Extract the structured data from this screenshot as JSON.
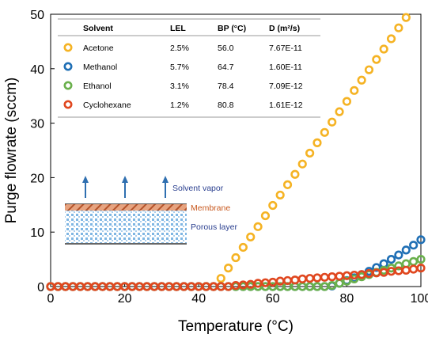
{
  "chart_data": {
    "type": "scatter",
    "xlabel": "Temperature (°C)",
    "ylabel": "Purge flowrate (sccm)",
    "xlim": [
      0,
      100
    ],
    "ylim": [
      0,
      50
    ],
    "xticks": [
      0,
      20,
      40,
      60,
      80,
      100
    ],
    "yticks": [
      0,
      10,
      20,
      30,
      40,
      50
    ],
    "x": [
      0,
      2,
      4,
      6,
      8,
      10,
      12,
      14,
      16,
      18,
      20,
      22,
      24,
      26,
      28,
      30,
      32,
      34,
      36,
      38,
      40,
      42,
      44,
      46,
      48,
      50,
      52,
      54,
      56,
      58,
      60,
      62,
      64,
      66,
      68,
      70,
      72,
      74,
      76,
      78,
      80,
      82,
      84,
      86,
      88,
      90,
      92,
      94,
      96,
      98,
      100
    ],
    "table": {
      "headers": [
        "Solvent",
        "LEL",
        "BP (°C)",
        "D (m²/s)"
      ],
      "rows": [
        [
          "Acetone",
          "2.5%",
          "56.0",
          "7.67E-11"
        ],
        [
          "Methanol",
          "5.7%",
          "64.7",
          "1.60E-11"
        ],
        [
          "Ethanol",
          "3.1%",
          "78.4",
          "7.09E-12"
        ],
        [
          "Cyclohexane",
          "1.2%",
          "80.8",
          "1.61E-12"
        ]
      ]
    },
    "series": [
      {
        "name": "Acetone",
        "color": "#f5b324",
        "values": [
          0,
          0,
          0,
          0,
          0,
          0,
          0,
          0,
          0,
          0,
          0,
          0,
          0,
          0,
          0,
          0,
          0,
          0,
          0,
          0,
          0,
          0,
          0,
          1.5,
          3.4,
          5.3,
          7.2,
          9.1,
          11.0,
          13.0,
          14.9,
          16.8,
          18.7,
          20.6,
          22.5,
          24.5,
          26.4,
          28.3,
          30.2,
          32.1,
          34.0,
          36.0,
          37.9,
          39.8,
          41.7,
          43.6,
          45.5,
          47.5,
          49.4,
          51.3,
          53.2
        ]
      },
      {
        "name": "Methanol",
        "color": "#1f6fb5",
        "values": [
          0,
          0,
          0,
          0,
          0,
          0,
          0,
          0,
          0,
          0,
          0,
          0,
          0,
          0,
          0,
          0,
          0,
          0,
          0,
          0,
          0,
          0,
          0,
          0,
          0,
          0,
          0,
          0,
          0,
          0,
          0,
          0,
          0,
          0,
          0,
          0,
          0,
          0,
          0.1,
          0.6,
          1.1,
          1.6,
          2.2,
          2.8,
          3.5,
          4.2,
          5.0,
          5.8,
          6.7,
          7.6,
          8.6
        ]
      },
      {
        "name": "Ethanol",
        "color": "#6ab04c",
        "values": [
          0,
          0,
          0,
          0,
          0,
          0,
          0,
          0,
          0,
          0,
          0,
          0,
          0,
          0,
          0,
          0,
          0,
          0,
          0,
          0,
          0,
          0,
          0,
          0,
          0,
          0,
          0,
          0,
          0,
          0,
          0,
          0,
          0,
          0,
          0,
          0,
          0,
          0,
          0.2,
          0.6,
          1.0,
          1.4,
          1.8,
          2.2,
          2.6,
          3.0,
          3.4,
          3.8,
          4.2,
          4.6,
          5.0
        ]
      },
      {
        "name": "Cyclohexane",
        "color": "#e0471f",
        "values": [
          0,
          0,
          0,
          0,
          0,
          0,
          0,
          0,
          0,
          0,
          0,
          0,
          0,
          0,
          0,
          0,
          0,
          0,
          0,
          0,
          0,
          0,
          0,
          0,
          0,
          0.2,
          0.3,
          0.4,
          0.6,
          0.7,
          0.8,
          1.0,
          1.1,
          1.2,
          1.4,
          1.5,
          1.6,
          1.7,
          1.8,
          1.9,
          2.0,
          2.1,
          2.2,
          2.4,
          2.5,
          2.6,
          2.8,
          2.9,
          3.0,
          3.2,
          3.4
        ]
      }
    ],
    "inset_labels": {
      "vapor": "Solvent vapor",
      "membrane": "Membrane",
      "porous": "Porous layer"
    },
    "grid": false
  }
}
